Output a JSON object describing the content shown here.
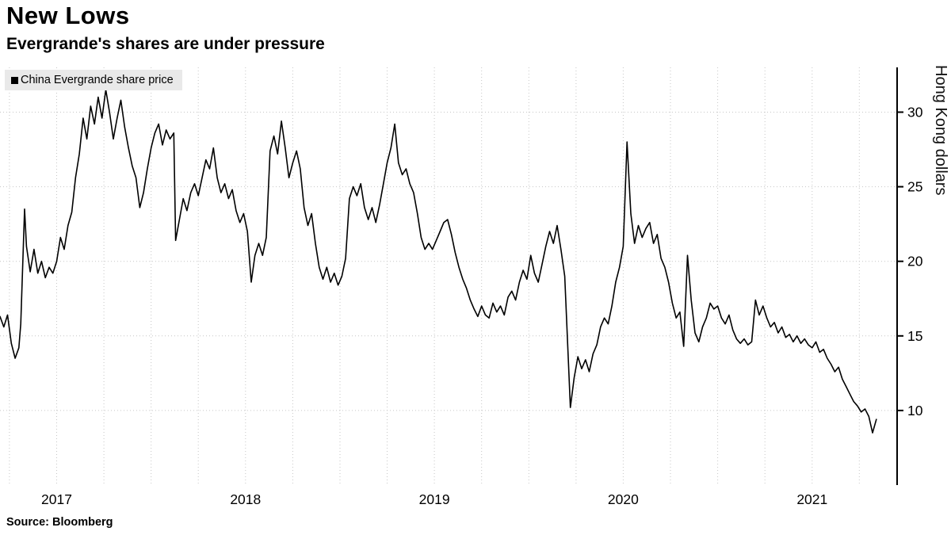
{
  "header": {
    "title": "New Lows",
    "subtitle": "Evergrande's shares are under pressure"
  },
  "legend": {
    "label": "China Evergrande share price",
    "marker_color": "#000000"
  },
  "y_axis": {
    "label": "Hong Kong dollars"
  },
  "source": "Source: Bloomberg",
  "colors": {
    "line": "#000000",
    "grid": "#c6c6c6",
    "axis": "#000000",
    "legend_bg": "#e9e9e9",
    "background": "#ffffff"
  },
  "chart_data": {
    "type": "line",
    "title": "New Lows",
    "subtitle": "Evergrande's shares are under pressure",
    "series_name": "China Evergrande share price",
    "ylabel": "Hong Kong dollars",
    "xlabel": "",
    "xlim": [
      2016.7,
      2021.45
    ],
    "ylim": [
      5,
      33
    ],
    "y_ticks": [
      10,
      15,
      20,
      25,
      30
    ],
    "x_ticks": [
      2017,
      2018,
      2019,
      2020,
      2021
    ],
    "grid": "dotted; vertical quarterly, horizontal at y ticks",
    "legend_position": "top-left",
    "points": [
      [
        2016.7,
        16.3
      ],
      [
        2016.72,
        15.6
      ],
      [
        2016.74,
        16.4
      ],
      [
        2016.76,
        14.5
      ],
      [
        2016.78,
        13.5
      ],
      [
        2016.8,
        14.2
      ],
      [
        2016.81,
        15.8
      ],
      [
        2016.83,
        23.5
      ],
      [
        2016.84,
        21.0
      ],
      [
        2016.86,
        19.3
      ],
      [
        2016.88,
        20.8
      ],
      [
        2016.9,
        19.2
      ],
      [
        2016.92,
        20.0
      ],
      [
        2016.94,
        18.9
      ],
      [
        2016.96,
        19.6
      ],
      [
        2016.98,
        19.2
      ],
      [
        2017.0,
        20.0
      ],
      [
        2017.02,
        21.6
      ],
      [
        2017.04,
        20.8
      ],
      [
        2017.06,
        22.4
      ],
      [
        2017.08,
        23.3
      ],
      [
        2017.1,
        25.6
      ],
      [
        2017.12,
        27.2
      ],
      [
        2017.14,
        29.6
      ],
      [
        2017.16,
        28.2
      ],
      [
        2017.18,
        30.4
      ],
      [
        2017.2,
        29.2
      ],
      [
        2017.22,
        31.0
      ],
      [
        2017.24,
        29.6
      ],
      [
        2017.26,
        31.5
      ],
      [
        2017.28,
        30.0
      ],
      [
        2017.3,
        28.2
      ],
      [
        2017.32,
        29.6
      ],
      [
        2017.34,
        30.8
      ],
      [
        2017.36,
        29.0
      ],
      [
        2017.38,
        27.6
      ],
      [
        2017.4,
        26.4
      ],
      [
        2017.42,
        25.6
      ],
      [
        2017.44,
        23.6
      ],
      [
        2017.46,
        24.6
      ],
      [
        2017.48,
        26.2
      ],
      [
        2017.5,
        27.6
      ],
      [
        2017.52,
        28.6
      ],
      [
        2017.54,
        29.2
      ],
      [
        2017.56,
        27.8
      ],
      [
        2017.58,
        28.8
      ],
      [
        2017.6,
        28.2
      ],
      [
        2017.62,
        28.6
      ],
      [
        2017.63,
        21.4
      ],
      [
        2017.65,
        22.8
      ],
      [
        2017.67,
        24.2
      ],
      [
        2017.69,
        23.4
      ],
      [
        2017.71,
        24.6
      ],
      [
        2017.73,
        25.2
      ],
      [
        2017.75,
        24.4
      ],
      [
        2017.77,
        25.6
      ],
      [
        2017.79,
        26.8
      ],
      [
        2017.81,
        26.2
      ],
      [
        2017.83,
        27.6
      ],
      [
        2017.85,
        25.6
      ],
      [
        2017.87,
        24.6
      ],
      [
        2017.89,
        25.2
      ],
      [
        2017.91,
        24.2
      ],
      [
        2017.93,
        24.8
      ],
      [
        2017.95,
        23.4
      ],
      [
        2017.97,
        22.6
      ],
      [
        2017.99,
        23.2
      ],
      [
        2018.01,
        22.0
      ],
      [
        2018.03,
        18.6
      ],
      [
        2018.05,
        20.4
      ],
      [
        2018.07,
        21.2
      ],
      [
        2018.09,
        20.4
      ],
      [
        2018.11,
        21.6
      ],
      [
        2018.13,
        27.4
      ],
      [
        2018.15,
        28.4
      ],
      [
        2018.17,
        27.2
      ],
      [
        2018.19,
        29.4
      ],
      [
        2018.21,
        27.6
      ],
      [
        2018.23,
        25.6
      ],
      [
        2018.25,
        26.6
      ],
      [
        2018.27,
        27.4
      ],
      [
        2018.29,
        26.2
      ],
      [
        2018.31,
        23.6
      ],
      [
        2018.33,
        22.4
      ],
      [
        2018.35,
        23.2
      ],
      [
        2018.37,
        21.2
      ],
      [
        2018.39,
        19.6
      ],
      [
        2018.41,
        18.8
      ],
      [
        2018.43,
        19.6
      ],
      [
        2018.45,
        18.6
      ],
      [
        2018.47,
        19.2
      ],
      [
        2018.49,
        18.4
      ],
      [
        2018.51,
        19.0
      ],
      [
        2018.53,
        20.2
      ],
      [
        2018.55,
        24.2
      ],
      [
        2018.57,
        25.0
      ],
      [
        2018.59,
        24.4
      ],
      [
        2018.61,
        25.2
      ],
      [
        2018.63,
        23.6
      ],
      [
        2018.65,
        22.8
      ],
      [
        2018.67,
        23.6
      ],
      [
        2018.69,
        22.6
      ],
      [
        2018.71,
        23.8
      ],
      [
        2018.73,
        25.2
      ],
      [
        2018.75,
        26.6
      ],
      [
        2018.77,
        27.6
      ],
      [
        2018.79,
        29.2
      ],
      [
        2018.81,
        26.6
      ],
      [
        2018.83,
        25.8
      ],
      [
        2018.85,
        26.2
      ],
      [
        2018.87,
        25.2
      ],
      [
        2018.89,
        24.6
      ],
      [
        2018.91,
        23.2
      ],
      [
        2018.93,
        21.6
      ],
      [
        2018.95,
        20.8
      ],
      [
        2018.97,
        21.2
      ],
      [
        2018.99,
        20.8
      ],
      [
        2019.01,
        21.4
      ],
      [
        2019.03,
        22.0
      ],
      [
        2019.05,
        22.6
      ],
      [
        2019.07,
        22.8
      ],
      [
        2019.09,
        21.8
      ],
      [
        2019.11,
        20.6
      ],
      [
        2019.13,
        19.6
      ],
      [
        2019.15,
        18.8
      ],
      [
        2019.17,
        18.2
      ],
      [
        2019.19,
        17.4
      ],
      [
        2019.21,
        16.8
      ],
      [
        2019.23,
        16.3
      ],
      [
        2019.25,
        17.0
      ],
      [
        2019.27,
        16.4
      ],
      [
        2019.29,
        16.2
      ],
      [
        2019.31,
        17.2
      ],
      [
        2019.33,
        16.6
      ],
      [
        2019.35,
        17.0
      ],
      [
        2019.37,
        16.4
      ],
      [
        2019.39,
        17.6
      ],
      [
        2019.41,
        18.0
      ],
      [
        2019.43,
        17.4
      ],
      [
        2019.45,
        18.6
      ],
      [
        2019.47,
        19.4
      ],
      [
        2019.49,
        18.8
      ],
      [
        2019.51,
        20.4
      ],
      [
        2019.53,
        19.2
      ],
      [
        2019.55,
        18.6
      ],
      [
        2019.57,
        19.8
      ],
      [
        2019.59,
        21.0
      ],
      [
        2019.61,
        22.0
      ],
      [
        2019.63,
        21.2
      ],
      [
        2019.65,
        22.4
      ],
      [
        2019.67,
        20.8
      ],
      [
        2019.69,
        19.0
      ],
      [
        2019.71,
        13.2
      ],
      [
        2019.72,
        10.2
      ],
      [
        2019.74,
        12.2
      ],
      [
        2019.76,
        13.6
      ],
      [
        2019.78,
        12.8
      ],
      [
        2019.8,
        13.4
      ],
      [
        2019.82,
        12.6
      ],
      [
        2019.84,
        13.8
      ],
      [
        2019.86,
        14.4
      ],
      [
        2019.88,
        15.6
      ],
      [
        2019.9,
        16.2
      ],
      [
        2019.92,
        15.8
      ],
      [
        2019.94,
        17.0
      ],
      [
        2019.96,
        18.6
      ],
      [
        2019.98,
        19.6
      ],
      [
        2020.0,
        21.0
      ],
      [
        2020.02,
        28.0
      ],
      [
        2020.04,
        23.2
      ],
      [
        2020.06,
        21.2
      ],
      [
        2020.08,
        22.4
      ],
      [
        2020.1,
        21.6
      ],
      [
        2020.12,
        22.2
      ],
      [
        2020.14,
        22.6
      ],
      [
        2020.16,
        21.2
      ],
      [
        2020.18,
        21.8
      ],
      [
        2020.2,
        20.2
      ],
      [
        2020.22,
        19.6
      ],
      [
        2020.24,
        18.6
      ],
      [
        2020.26,
        17.2
      ],
      [
        2020.28,
        16.2
      ],
      [
        2020.3,
        16.6
      ],
      [
        2020.32,
        14.3
      ],
      [
        2020.34,
        20.4
      ],
      [
        2020.36,
        17.4
      ],
      [
        2020.38,
        15.2
      ],
      [
        2020.4,
        14.6
      ],
      [
        2020.42,
        15.6
      ],
      [
        2020.44,
        16.2
      ],
      [
        2020.46,
        17.2
      ],
      [
        2020.48,
        16.8
      ],
      [
        2020.5,
        17.0
      ],
      [
        2020.52,
        16.2
      ],
      [
        2020.54,
        15.8
      ],
      [
        2020.56,
        16.4
      ],
      [
        2020.58,
        15.4
      ],
      [
        2020.6,
        14.8
      ],
      [
        2020.62,
        14.5
      ],
      [
        2020.64,
        14.8
      ],
      [
        2020.66,
        14.4
      ],
      [
        2020.68,
        14.6
      ],
      [
        2020.7,
        17.4
      ],
      [
        2020.72,
        16.4
      ],
      [
        2020.74,
        17.0
      ],
      [
        2020.76,
        16.2
      ],
      [
        2020.78,
        15.6
      ],
      [
        2020.8,
        15.9
      ],
      [
        2020.82,
        15.2
      ],
      [
        2020.84,
        15.6
      ],
      [
        2020.86,
        14.9
      ],
      [
        2020.88,
        15.1
      ],
      [
        2020.9,
        14.6
      ],
      [
        2020.92,
        15.0
      ],
      [
        2020.94,
        14.5
      ],
      [
        2020.96,
        14.8
      ],
      [
        2020.98,
        14.4
      ],
      [
        2021.0,
        14.2
      ],
      [
        2021.02,
        14.6
      ],
      [
        2021.04,
        13.9
      ],
      [
        2021.06,
        14.1
      ],
      [
        2021.08,
        13.5
      ],
      [
        2021.1,
        13.1
      ],
      [
        2021.12,
        12.6
      ],
      [
        2021.14,
        12.9
      ],
      [
        2021.16,
        12.1
      ],
      [
        2021.18,
        11.6
      ],
      [
        2021.2,
        11.1
      ],
      [
        2021.22,
        10.6
      ],
      [
        2021.24,
        10.3
      ],
      [
        2021.26,
        9.9
      ],
      [
        2021.28,
        10.1
      ],
      [
        2021.3,
        9.6
      ],
      [
        2021.32,
        8.5
      ],
      [
        2021.34,
        9.4
      ]
    ]
  }
}
